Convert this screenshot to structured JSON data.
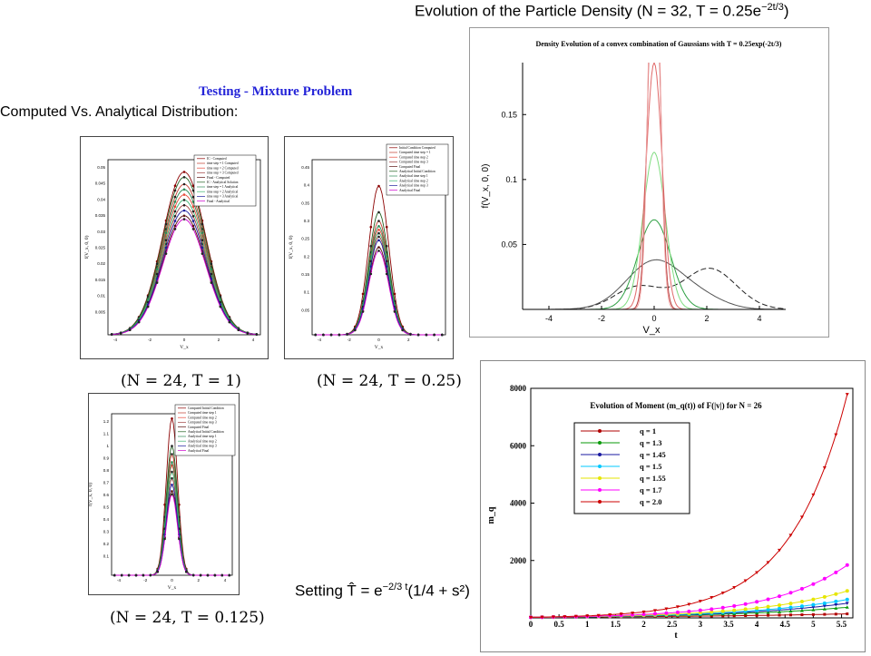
{
  "slide": {
    "heading": "Testing - Mixture Problem",
    "subheading": "Computed Vs. Analytical Distribution:",
    "top_title": "Evolution of the Particle Density (N = 32, T = 0.25e",
    "top_title_exp": "−2t/3",
    "top_title_close": ")",
    "setting_text": "Setting T̂ = e",
    "setting_exp": "−2/3 t",
    "setting_tail": "(1/4 + s²)"
  },
  "small_panels": [
    {
      "caption": "(N = 24, T = 1)",
      "ylabel": "f(V_x, 0, 0)",
      "xlabel": "V_x",
      "yticks": [
        "0.05",
        "0.045",
        "0.04",
        "0.035",
        "0.03",
        "0.025",
        "0.02",
        "0.015",
        "0.01",
        "0.005"
      ],
      "xticks": [
        "-4",
        "-2",
        "0",
        "2",
        "4"
      ],
      "legend": [
        "IC - Computed",
        "time step = 1 Computed",
        "time step = 2 Computed",
        "time step = 3 Computed",
        "Final - Computed",
        "IC - Analytical Solution",
        "time step = 1 Analytical",
        "time step = 2 Analytical",
        "time step = 3 Analytical",
        "Final - Analytical"
      ]
    },
    {
      "caption": "(N = 24, T = 0.25)",
      "ylabel": "f(V_x, 0, 0)",
      "xlabel": "V_x",
      "yticks": [
        "0.45",
        "0.4",
        "0.35",
        "0.3",
        "0.25",
        "0.2",
        "0.15",
        "0.1",
        "0.05"
      ],
      "xticks": [
        "-4",
        "-2",
        "0",
        "2",
        "4"
      ],
      "legend": [
        "Initial Condition Computed",
        "Computed time step = 1",
        "Computed time step 2",
        "Computed time step 3",
        "Computed Final",
        "Analytical Initial Condition",
        "Analytical time step 1",
        "Analytical time step 2",
        "Analytical time step 3",
        "Analytical Final"
      ]
    },
    {
      "caption": "(N = 24, T = 0.125)",
      "ylabel": "f(V_x, 0, 0)",
      "xlabel": "V_x",
      "yticks": [
        "1.2",
        "1.1",
        "1",
        "0.9",
        "0.8",
        "0.7",
        "0.6",
        "0.5",
        "0.4",
        "0.3",
        "0.2",
        "0.1"
      ],
      "xticks": [
        "-4",
        "-2",
        "0",
        "2",
        "4"
      ],
      "legend": [
        "Computed Initial Condition",
        "Computed time step 1",
        "Computed time step 2",
        "Computed time step 3",
        "Computed Final",
        "Analytical Initial Condition",
        "Analytical time step 1",
        "Analytical time step 2",
        "Analytical time step 3",
        "Analytical Final"
      ]
    }
  ],
  "chart_data": [
    {
      "type": "line",
      "title": "Density Evolution of a convex combination of Gaussians with T = 0.25exp(-2t/3)",
      "xlabel": "V_x",
      "ylabel": "f(V_x, 0, 0)",
      "xlim": [
        -5,
        5
      ],
      "ylim": [
        0,
        0.19
      ],
      "xticks": [
        "-4",
        "-2",
        "0",
        "2",
        "4"
      ],
      "yticks": [
        "0.05",
        "0.1",
        "0.15"
      ],
      "series": [
        {
          "color": "#222222",
          "dash": "6 3",
          "mixture": true,
          "amp": 0.035,
          "sigma": 1.1
        },
        {
          "color": "#555555",
          "dash": "",
          "amp": 0.037,
          "sigma": 1.05
        },
        {
          "color": "#2ea043",
          "dash": "",
          "amp": 0.069,
          "sigma": 0.62
        },
        {
          "color": "#7fdc7f",
          "dash": "",
          "amp": 0.121,
          "sigma": 0.42
        },
        {
          "color": "#e06a6a",
          "dash": "",
          "amp": 0.19,
          "sigma": 0.3
        },
        {
          "color": "#b33a3a",
          "dash": "",
          "amp": 0.3,
          "sigma": 0.22
        },
        {
          "color": "#f0a0a0",
          "dash": "",
          "amp": 0.35,
          "sigma": 0.2
        }
      ]
    },
    {
      "type": "line",
      "title": "Evolution of Moment (m_q(t)) of F(|v|) for N = 26",
      "xlabel": "t",
      "ylabel": "m_q",
      "xlim": [
        0,
        5.7
      ],
      "ylim": [
        0,
        8000
      ],
      "xticks": [
        "0",
        "0.5",
        "1",
        "1.5",
        "2",
        "2.5",
        "3",
        "3.5",
        "4",
        "4.5",
        "5",
        "5.5"
      ],
      "yticks": [
        "2000",
        "4000",
        "6000",
        "8000"
      ],
      "legend": [
        "q = 1",
        "q = 1.3",
        "q = 1.45",
        "q = 1.5",
        "q = 1.55",
        "q = 1.7",
        "q = 2.0"
      ],
      "series": [
        {
          "name": "q = 1",
          "color": "#b00000",
          "final": 150,
          "marker": "square"
        },
        {
          "name": "q = 1.3",
          "color": "#0a9a0a",
          "final": 380,
          "marker": "triangle"
        },
        {
          "name": "q = 1.45",
          "color": "#1a1aa0",
          "final": 520,
          "marker": "tri-down"
        },
        {
          "name": "q = 1.5",
          "color": "#00c8ff",
          "final": 650,
          "marker": "dot"
        },
        {
          "name": "q = 1.55",
          "color": "#e6e600",
          "final": 950,
          "marker": "dot"
        },
        {
          "name": "q = 1.7",
          "color": "#ff00ff",
          "final": 1850,
          "marker": "dot"
        },
        {
          "name": "q = 2.0",
          "color": "#cc0000",
          "final": 7800,
          "marker": "tri-down"
        }
      ]
    }
  ],
  "colors": {
    "heading_blue": "#2424d8",
    "panel_border": "#444444"
  }
}
